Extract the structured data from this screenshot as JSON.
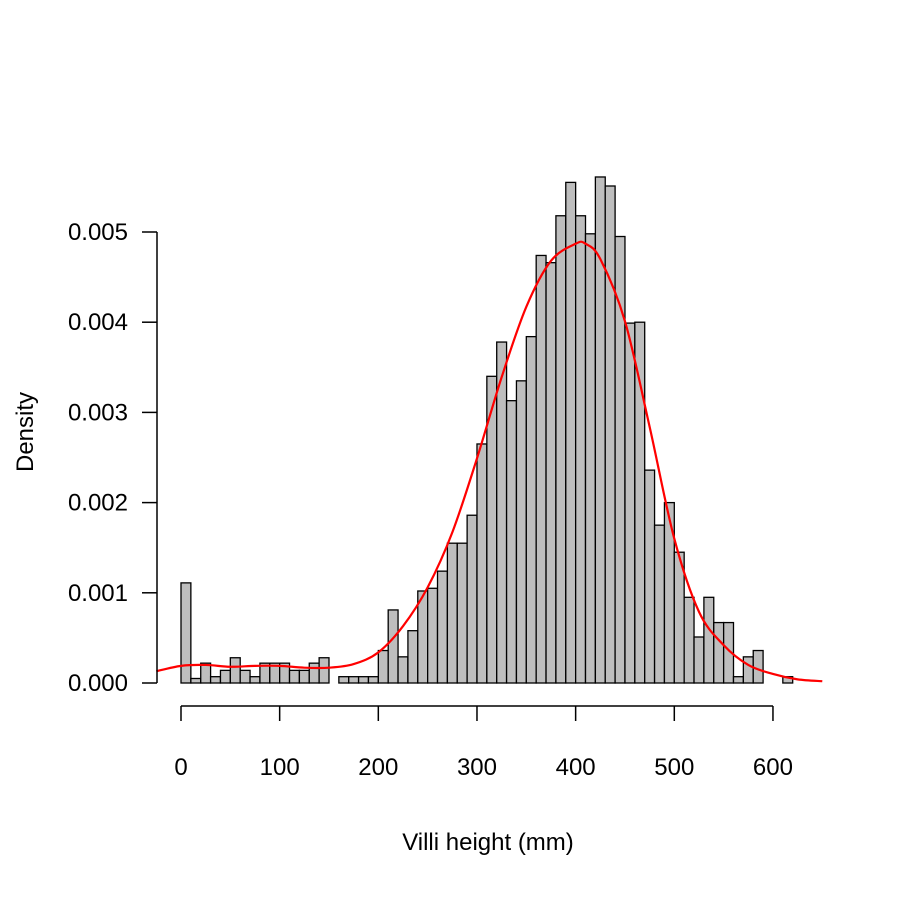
{
  "chart_data": {
    "type": "bar",
    "subtype": "histogram-with-density-curve",
    "title": "",
    "xlabel": "Villi height (mm)",
    "ylabel": "Density",
    "xlim": [
      0,
      640
    ],
    "ylim": [
      0,
      0.0055
    ],
    "x_ticks": [
      "0",
      "100",
      "200",
      "300",
      "400",
      "500",
      "600"
    ],
    "y_ticks": [
      "0.000",
      "0.001",
      "0.002",
      "0.003",
      "0.004",
      "0.005"
    ],
    "bin_width": 10,
    "bin_start": 0,
    "bar_fill": "#bebebe",
    "curve_color": "#ff0000",
    "histogram_densities": [
      0.00111,
      5e-05,
      0.00022,
      7e-05,
      0.00014,
      0.00028,
      0.00014,
      7e-05,
      0.00022,
      0.00022,
      0.00022,
      0.00014,
      0.00014,
      0.00022,
      0.00028,
      0.0,
      7e-05,
      7e-05,
      7e-05,
      7e-05,
      0.00036,
      0.00081,
      0.00029,
      0.00058,
      0.00102,
      0.00105,
      0.00124,
      0.00155,
      0.00155,
      0.00186,
      0.00265,
      0.0034,
      0.00378,
      0.00313,
      0.00335,
      0.00384,
      0.00474,
      0.00466,
      0.00518,
      0.00555,
      0.00518,
      0.00498,
      0.00561,
      0.00551,
      0.00495,
      0.00399,
      0.004,
      0.00236,
      0.00175,
      0.002,
      0.00145,
      0.00095,
      0.00051,
      0.00095,
      0.00067,
      0.00067,
      7e-05,
      0.00029,
      0.00036,
      0.0,
      0.0,
      7e-05
    ],
    "density_curve": {
      "x": [
        -25,
        0,
        25,
        50,
        75,
        100,
        125,
        150,
        175,
        200,
        225,
        250,
        275,
        300,
        325,
        350,
        375,
        400,
        410,
        425,
        450,
        475,
        500,
        525,
        550,
        575,
        600,
        625,
        650
      ],
      "y": [
        0.00013,
        0.00019,
        0.0002,
        0.00018,
        0.00019,
        0.00019,
        0.00017,
        0.00017,
        0.00021,
        0.00034,
        0.00063,
        0.00106,
        0.00167,
        0.00249,
        0.00339,
        0.00417,
        0.00468,
        0.00487,
        0.00487,
        0.0047,
        0.00401,
        0.00284,
        0.0016,
        0.00079,
        0.00042,
        0.0002,
        0.0001,
        4e-05,
        2e-05
      ]
    }
  }
}
